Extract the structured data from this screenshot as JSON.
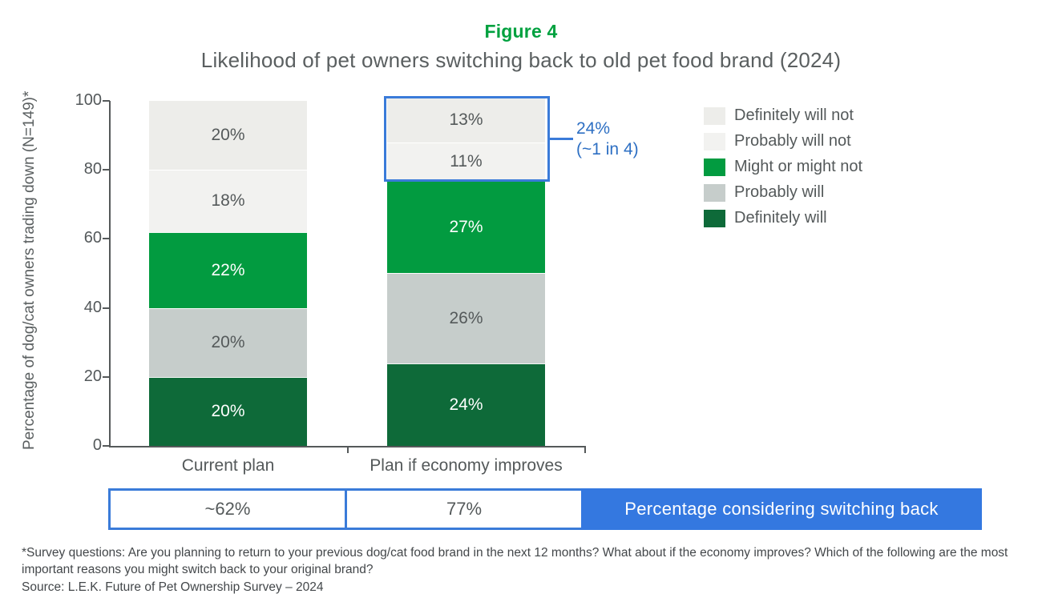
{
  "figure_label": "Figure 4",
  "title": "Likelihood of pet owners switching back to old pet food brand (2024)",
  "colors": {
    "figure_label_green": "#00a13f",
    "bright_green": "#029b40",
    "dark_green": "#0e6a39",
    "medium_gray": "#c6cdcb",
    "light_gray_1": "#ededea",
    "light_gray_2": "#f2f2f0",
    "accent_blue_border": "#3a7bd9",
    "banner_blue": "#3478e0",
    "annotation_blue": "#2d6fc3",
    "axis_gray": "#55595a"
  },
  "chart_data": {
    "type": "bar",
    "stacked": true,
    "title": "Likelihood of pet owners switching back to old pet food brand (2024)",
    "categories": [
      "Current plan",
      "Plan if economy improves"
    ],
    "series": [
      {
        "name": "Definitely will not",
        "values": [
          20,
          13
        ],
        "color": "#ededea",
        "label_color": "#54595a"
      },
      {
        "name": "Probably will not",
        "values": [
          18,
          11
        ],
        "color": "#f2f2f0",
        "label_color": "#54595a"
      },
      {
        "name": "Might or might not",
        "values": [
          22,
          27
        ],
        "color": "#029b40",
        "label_color": "#ffffff"
      },
      {
        "name": "Probably will",
        "values": [
          20,
          26
        ],
        "color": "#c6cdcb",
        "label_color": "#54595a"
      },
      {
        "name": "Definitely will",
        "values": [
          20,
          24
        ],
        "color": "#0e6a39",
        "label_color": "#ffffff"
      }
    ],
    "value_suffix": "%",
    "xlabel": "",
    "ylabel": "Percentage of dog/cat owners trading down (N=149)*",
    "yticks": [
      100,
      80,
      60,
      40,
      20,
      0
    ],
    "ylim": [
      0,
      100
    ],
    "grid": false,
    "legend_position": "right"
  },
  "annotation": {
    "line1": "24%",
    "line2": "(~1 in 4)"
  },
  "bottom_row": {
    "cells": [
      "~62%",
      "77%"
    ],
    "banner": "Percentage considering switching back"
  },
  "footnote": {
    "line1": "*Survey questions: Are you planning to return to your previous dog/cat food brand in the next 12 months? What about if the economy improves? Which of the following are the most important reasons you might switch back to your original brand?",
    "source": "Source: L.E.K. Future of Pet Ownership Survey – 2024"
  }
}
